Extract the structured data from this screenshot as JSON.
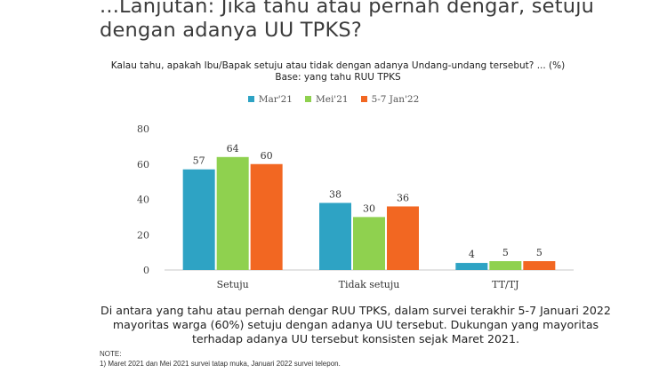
{
  "header": {
    "title_line1": "...Lanjutan: Jika tahu atau pernah dengar, setuju",
    "title_line2": "dengan adanya UU TPKS?"
  },
  "question": {
    "line1": "Kalau tahu, apakah Ibu/Bapak setuju atau tidak dengan adanya Undang-undang tersebut? ... (%)",
    "line2": "Base: yang tahu RUU TPKS"
  },
  "chart_data": {
    "type": "bar",
    "categories": [
      "Setuju",
      "Tidak setuju",
      "TT/TJ"
    ],
    "series": [
      {
        "name": "Mar'21",
        "color": "#2ea3c4",
        "values": [
          57,
          38,
          4
        ]
      },
      {
        "name": "Mei'21",
        "color": "#8fd14f",
        "values": [
          64,
          30,
          5
        ]
      },
      {
        "name": "5-7 Jan'22",
        "color": "#f26722",
        "values": [
          60,
          36,
          5
        ]
      }
    ],
    "ylim": [
      0,
      80
    ],
    "yticks": [
      0,
      20,
      40,
      60,
      80
    ],
    "grid": false,
    "legend": "top-center",
    "data_labels": true
  },
  "summary": {
    "line1": "Di antara yang tahu atau pernah dengar RUU TPKS, dalam survei terakhir 5-7 Januari 2022",
    "line2": "mayoritas warga (60%) setuju dengan adanya UU tersebut. Dukungan yang mayoritas",
    "line3": "terhadap adanya UU tersebut konsisten sejak Maret 2021."
  },
  "notes": {
    "title": "NOTE:",
    "item1": "1)   Maret 2021 dan Mei 2021 survei tatap muka, Januari 2022 survei telepon."
  }
}
